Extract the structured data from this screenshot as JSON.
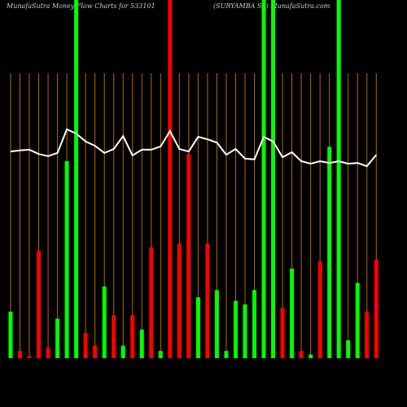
{
  "chart_data": {
    "type": "bar",
    "title": "MunafaSutra  Money Flow  Charts for 533101",
    "subtitle": "(SURYAMBA SP) MunafaSutra.com",
    "categories": [
      null,
      null,
      null,
      null,
      null,
      null,
      null,
      null,
      null,
      null,
      null,
      null,
      null,
      null,
      null,
      null,
      null,
      null,
      null,
      null,
      null,
      null,
      null,
      null,
      null,
      null,
      null,
      null,
      null,
      null,
      null,
      null,
      null,
      null,
      null,
      null,
      null,
      null,
      null,
      null
    ],
    "values": [
      13,
      2,
      0.5,
      30,
      3,
      11,
      55,
      100,
      7,
      3.5,
      20,
      12,
      3.5,
      12,
      8,
      31,
      2,
      100,
      32,
      57,
      17,
      32,
      19,
      2,
      16,
      15,
      19,
      100,
      100,
      14,
      25,
      2,
      1,
      27,
      59,
      100,
      5,
      21,
      13,
      27.5
    ],
    "colors": [
      "#00ff00",
      "#ff0000",
      "#ff0000",
      "#ff0000",
      "#ff0000",
      "#00ff00",
      "#00ff00",
      "#00ff00",
      "#ff0000",
      "#ff0000",
      "#00ff00",
      "#ff0000",
      "#00ff00",
      "#ff0000",
      "#00ff00",
      "#ff0000",
      "#00ff00",
      "#ff0000",
      "#ff0000",
      "#ff0000",
      "#00ff00",
      "#ff0000",
      "#00ff00",
      "#00ff00",
      "#00ff00",
      "#00ff00",
      "#00ff00",
      "#00ff00",
      "#00ff00",
      "#ff0000",
      "#00ff00",
      "#ff0000",
      "#00ff00",
      "#ff0000",
      "#00ff00",
      "#00ff00",
      "#00ff00",
      "#00ff00",
      "#ff0000",
      "#ff0000"
    ],
    "line": {
      "color": "#ffffff",
      "values": [
        57.7,
        58.0,
        58.2,
        57.0,
        56.4,
        57.3,
        63.9,
        62.7,
        60.5,
        59.3,
        57.3,
        58.4,
        62.0,
        56.6,
        58.2,
        58.2,
        59.1,
        63.4,
        58.4,
        57.7,
        61.8,
        61.1,
        60.2,
        56.8,
        58.4,
        55.7,
        55.5,
        61.8,
        60.5,
        56.1,
        57.5,
        55.0,
        54.3,
        55.0,
        54.5,
        55.0,
        54.3,
        54.5,
        53.6,
        56.8
      ]
    },
    "ylim": [
      0,
      100
    ],
    "grid_color": "#b36b00",
    "background": "#000000"
  }
}
